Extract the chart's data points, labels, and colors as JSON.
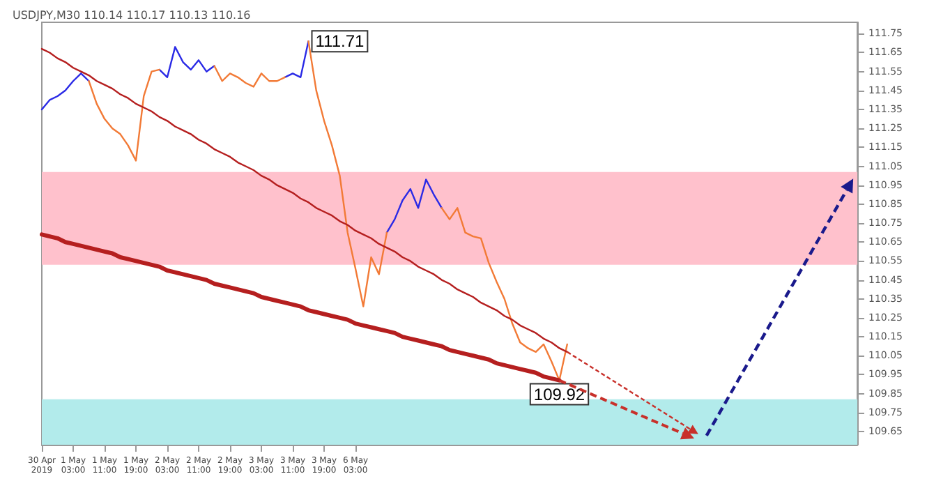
{
  "chart_data": {
    "type": "line",
    "title": "USDJPY,M30 110.14 110.17 110.13 110.16",
    "grid": false,
    "marker": "none",
    "categories": [
      "30 Apr 2019",
      null,
      null,
      null,
      "1 May 03:00",
      null,
      null,
      null,
      "1 May 11:00",
      null,
      null,
      null,
      "1 May 19:00",
      null,
      null,
      null,
      "2 May 03:00",
      null,
      null,
      null,
      "2 May 11:00",
      null,
      null,
      null,
      "2 May 19:00",
      null,
      null,
      null,
      "3 May 03:00",
      null,
      null,
      null,
      "3 May 11:00",
      null,
      null,
      null,
      "3 May 19:00",
      null,
      null,
      null,
      "6 May 03:00",
      null,
      null,
      null,
      null,
      null,
      null,
      null,
      null,
      null,
      null,
      null,
      null,
      null,
      null,
      null,
      null,
      null,
      null,
      null,
      null,
      null,
      null,
      null,
      null,
      null,
      null,
      null,
      null,
      null,
      null,
      null,
      null,
      null,
      null,
      null,
      null,
      null,
      null,
      null,
      null,
      null,
      null,
      null,
      null,
      null,
      null,
      null,
      null,
      null,
      null,
      null,
      null,
      null,
      null,
      null,
      null,
      null,
      null,
      null,
      null,
      null,
      null,
      null,
      null
    ],
    "ylim": [
      109.58,
      111.81
    ],
    "yticks": [
      109.65,
      109.75,
      109.85,
      109.95,
      110.05,
      110.15,
      110.25,
      110.35,
      110.45,
      110.55,
      110.65,
      110.75,
      110.85,
      110.95,
      111.05,
      111.15,
      111.25,
      111.35,
      111.45,
      111.55,
      111.65,
      111.75
    ],
    "bands": [
      {
        "axis": "y",
        "from": 110.53,
        "to": 111.02,
        "color": "#ffc1cc"
      },
      {
        "axis": "y",
        "from": 109.58,
        "to": 109.82,
        "color": "#b2ebeb"
      }
    ],
    "series": [
      {
        "color": "#2a2ae6",
        "values": [
          111.35,
          111.4,
          111.42,
          111.45,
          111.5,
          111.54,
          111.5,
          null,
          null,
          null,
          null,
          null,
          null,
          null,
          null,
          111.56,
          111.52,
          111.68,
          111.6,
          111.56,
          111.61,
          111.55,
          111.58,
          null,
          null,
          null,
          null,
          null,
          null,
          null,
          null,
          111.52,
          111.54,
          111.52,
          111.71,
          null,
          null,
          null,
          null,
          null,
          null,
          null,
          null,
          null,
          110.7,
          110.77,
          110.87,
          110.93,
          110.83,
          110.98,
          110.9,
          110.83,
          null,
          null,
          null,
          null,
          null,
          null,
          null,
          null,
          null,
          null,
          null,
          null,
          null,
          null,
          null,
          null,
          null,
          null,
          null,
          null,
          null,
          null,
          null,
          null,
          null,
          null,
          null,
          null,
          null,
          null,
          null,
          null,
          null,
          null,
          null,
          null,
          null,
          null,
          null,
          null,
          null,
          null,
          null,
          null,
          null,
          null,
          null,
          null,
          null,
          null,
          null,
          null,
          null
        ]
      },
      {
        "color": "#f27a36",
        "values": [
          null,
          null,
          null,
          null,
          null,
          null,
          111.5,
          111.38,
          111.3,
          111.25,
          111.22,
          111.16,
          111.08,
          111.42,
          111.55,
          111.56,
          null,
          null,
          null,
          null,
          null,
          null,
          111.58,
          111.5,
          111.54,
          111.52,
          111.49,
          111.47,
          111.54,
          111.5,
          111.5,
          111.52,
          null,
          null,
          111.71,
          111.45,
          111.29,
          111.16,
          111.0,
          110.7,
          110.51,
          110.31,
          110.57,
          110.48,
          110.7,
          null,
          null,
          null,
          null,
          null,
          null,
          110.83,
          110.77,
          110.83,
          110.7,
          110.68,
          110.67,
          110.54,
          110.44,
          110.35,
          110.22,
          110.12,
          110.09,
          110.07,
          110.11,
          110.02,
          109.92,
          110.11,
          null,
          null,
          null,
          null,
          null,
          null,
          null,
          null,
          null,
          null,
          null,
          null,
          null,
          null,
          null,
          null,
          null,
          null,
          null,
          null,
          null,
          null,
          null,
          null,
          null,
          null,
          null,
          null,
          null,
          null,
          null,
          null,
          null,
          null,
          null,
          null,
          null
        ],
        "value_labels": [
          null,
          null,
          null,
          null,
          null,
          null,
          null,
          null,
          null,
          null,
          null,
          null,
          null,
          null,
          null,
          null,
          null,
          null,
          null,
          null,
          null,
          null,
          null,
          null,
          null,
          null,
          null,
          null,
          null,
          null,
          null,
          null,
          null,
          null,
          "111.71",
          null,
          null,
          null,
          null,
          null,
          null,
          null,
          null,
          null,
          null,
          null,
          null,
          null,
          null,
          null,
          null,
          null,
          null,
          null,
          null,
          null,
          null,
          null,
          null,
          null,
          null,
          null,
          null,
          null,
          null,
          null,
          "109.92",
          null,
          null,
          null,
          null,
          null,
          null,
          null,
          null,
          null,
          null,
          null,
          null,
          null,
          null,
          null,
          null,
          null,
          null,
          null,
          null,
          null,
          null,
          null,
          null,
          null,
          null,
          null,
          null,
          null,
          null,
          null,
          null,
          null,
          null,
          null,
          null,
          null,
          null
        ]
      },
      {
        "color": "#b51f1f",
        "values": [
          111.67,
          111.65,
          111.62,
          111.6,
          111.57,
          111.55,
          111.53,
          111.5,
          111.48,
          111.46,
          111.43,
          111.41,
          111.38,
          111.36,
          111.34,
          111.31,
          111.29,
          111.26,
          111.24,
          111.22,
          111.19,
          111.17,
          111.14,
          111.12,
          111.1,
          111.07,
          111.05,
          111.03,
          111.0,
          110.98,
          110.95,
          110.93,
          110.91,
          110.88,
          110.86,
          110.83,
          110.81,
          110.79,
          110.76,
          110.74,
          110.71,
          110.69,
          110.67,
          110.64,
          110.62,
          110.6,
          110.57,
          110.55,
          110.52,
          110.5,
          110.48,
          110.45,
          110.43,
          110.4,
          110.38,
          110.36,
          110.33,
          110.31,
          110.29,
          110.26,
          110.24,
          110.21,
          110.19,
          110.17,
          110.14,
          110.12,
          110.09,
          110.07,
          null,
          null,
          null,
          null,
          null,
          null,
          null,
          null,
          null,
          null,
          null,
          null,
          null,
          null,
          null,
          null,
          null,
          null,
          null,
          null,
          null,
          null,
          null,
          null,
          null,
          null,
          null,
          null,
          null,
          null,
          null,
          null,
          null,
          null,
          null,
          null,
          null
        ]
      },
      {
        "color": "#b51f1f",
        "values": [
          110.69,
          110.68,
          110.67,
          110.65,
          110.64,
          110.63,
          110.62,
          110.61,
          110.6,
          110.59,
          110.57,
          110.56,
          110.55,
          110.54,
          110.53,
          110.52,
          110.5,
          110.49,
          110.48,
          110.47,
          110.46,
          110.45,
          110.43,
          110.42,
          110.41,
          110.4,
          110.39,
          110.38,
          110.36,
          110.35,
          110.34,
          110.33,
          110.32,
          110.31,
          110.29,
          110.28,
          110.27,
          110.26,
          110.25,
          110.24,
          110.22,
          110.21,
          110.2,
          110.19,
          110.18,
          110.17,
          110.15,
          110.14,
          110.13,
          110.12,
          110.11,
          110.1,
          110.08,
          110.07,
          110.06,
          110.05,
          110.04,
          110.03,
          110.01,
          110.0,
          109.99,
          109.98,
          109.97,
          109.96,
          109.94,
          109.93,
          109.92,
          null,
          null,
          null,
          null,
          null,
          null,
          null,
          null,
          null,
          null,
          null,
          null,
          null,
          null,
          null,
          null,
          null,
          null,
          null,
          null,
          null,
          null,
          null,
          null,
          null,
          null,
          null,
          null,
          null,
          null,
          null,
          null,
          null,
          null,
          null,
          null,
          null,
          null
        ]
      }
    ]
  }
}
